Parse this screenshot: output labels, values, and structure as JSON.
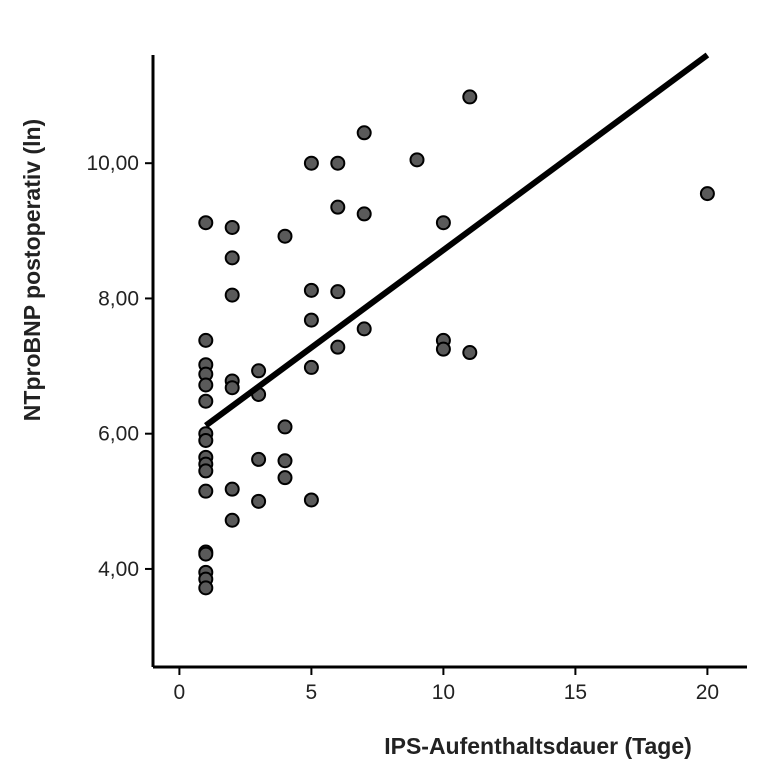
{
  "chart_data": {
    "type": "scatter",
    "title": "",
    "xlabel": "IPS-Aufenthaltsdauer (Tage)",
    "ylabel": "NTproBNP  postoperativ (ln)",
    "xlim": [
      -1,
      21.5
    ],
    "ylim": [
      2.55,
      11.6
    ],
    "xticks": [
      0,
      5,
      10,
      15,
      20
    ],
    "xtick_labels": [
      "0",
      "5",
      "10",
      "15",
      "20"
    ],
    "yticks": [
      4,
      6,
      8,
      10
    ],
    "ytick_labels": [
      "4,00",
      "6,00",
      "8,00",
      "10,00"
    ],
    "grid": false,
    "legend": "none",
    "point_color": "#5a5a5a",
    "line_color": "#000000",
    "points": [
      {
        "x": 1,
        "y": 9.12
      },
      {
        "x": 1,
        "y": 7.38
      },
      {
        "x": 1,
        "y": 7.02
      },
      {
        "x": 1,
        "y": 6.88
      },
      {
        "x": 1,
        "y": 6.72
      },
      {
        "x": 1,
        "y": 6.48
      },
      {
        "x": 1,
        "y": 6.0
      },
      {
        "x": 1,
        "y": 5.9
      },
      {
        "x": 1,
        "y": 5.65
      },
      {
        "x": 1,
        "y": 5.55
      },
      {
        "x": 1,
        "y": 5.45
      },
      {
        "x": 1,
        "y": 5.15
      },
      {
        "x": 1,
        "y": 4.25
      },
      {
        "x": 1,
        "y": 4.22
      },
      {
        "x": 1,
        "y": 3.95
      },
      {
        "x": 1,
        "y": 3.85
      },
      {
        "x": 1,
        "y": 3.72
      },
      {
        "x": 2,
        "y": 9.05
      },
      {
        "x": 2,
        "y": 8.6
      },
      {
        "x": 2,
        "y": 8.05
      },
      {
        "x": 2,
        "y": 6.78
      },
      {
        "x": 2,
        "y": 6.68
      },
      {
        "x": 2,
        "y": 5.18
      },
      {
        "x": 2,
        "y": 4.72
      },
      {
        "x": 3,
        "y": 6.93
      },
      {
        "x": 3,
        "y": 6.58
      },
      {
        "x": 3,
        "y": 5.62
      },
      {
        "x": 3,
        "y": 5.0
      },
      {
        "x": 4,
        "y": 8.92
      },
      {
        "x": 4,
        "y": 6.1
      },
      {
        "x": 4,
        "y": 5.6
      },
      {
        "x": 4,
        "y": 5.35
      },
      {
        "x": 5,
        "y": 10.0
      },
      {
        "x": 5,
        "y": 8.12
      },
      {
        "x": 5,
        "y": 7.68
      },
      {
        "x": 5,
        "y": 6.98
      },
      {
        "x": 5,
        "y": 5.02
      },
      {
        "x": 6,
        "y": 10.0
      },
      {
        "x": 6,
        "y": 9.35
      },
      {
        "x": 6,
        "y": 8.1
      },
      {
        "x": 6,
        "y": 7.28
      },
      {
        "x": 7,
        "y": 10.45
      },
      {
        "x": 7,
        "y": 9.25
      },
      {
        "x": 7,
        "y": 7.55
      },
      {
        "x": 9,
        "y": 10.05
      },
      {
        "x": 10,
        "y": 9.12
      },
      {
        "x": 10,
        "y": 7.38
      },
      {
        "x": 10,
        "y": 7.25
      },
      {
        "x": 11,
        "y": 10.98
      },
      {
        "x": 11,
        "y": 7.2
      },
      {
        "x": 20,
        "y": 9.55
      }
    ],
    "regression_line": {
      "x": [
        1,
        20
      ],
      "y": [
        6.12,
        11.6
      ]
    }
  }
}
